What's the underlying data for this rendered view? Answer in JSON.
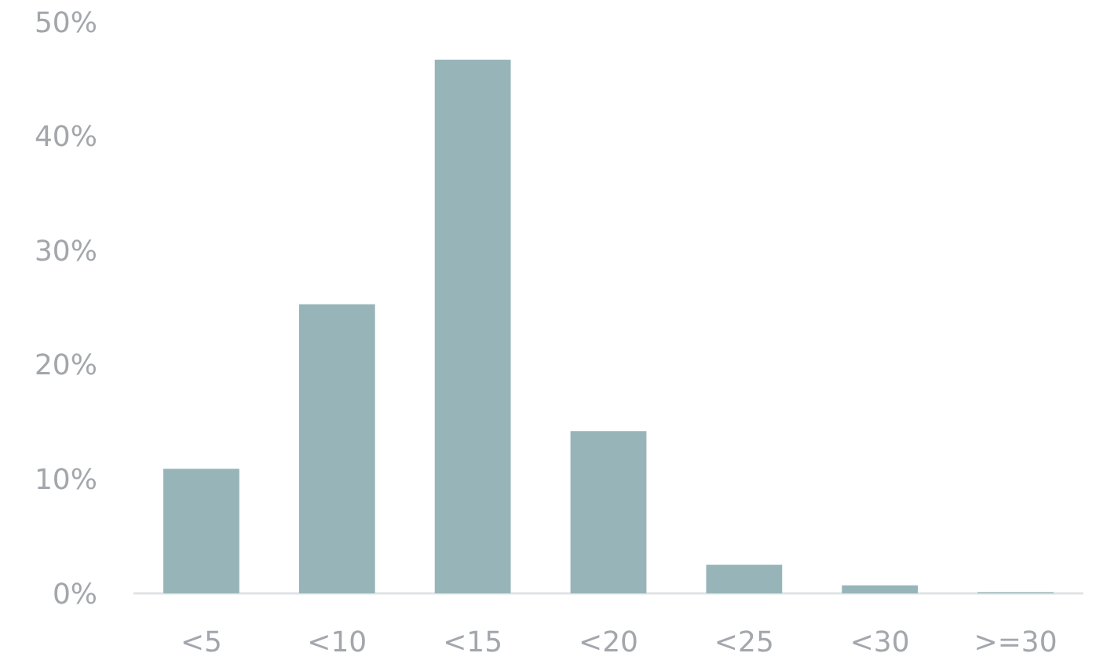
{
  "chart_data": {
    "type": "bar",
    "categories": [
      "<5",
      "<10",
      "<15",
      "<20",
      "<25",
      "<30",
      ">=30"
    ],
    "values": [
      10.9,
      25.3,
      46.7,
      14.2,
      2.5,
      0.7,
      0.1
    ],
    "color": "#97b5b9",
    "ylim": [
      0,
      50
    ],
    "yticks": [
      {
        "value": 0,
        "label": "0%"
      },
      {
        "value": 10,
        "label": "10%"
      },
      {
        "value": 20,
        "label": "20%"
      },
      {
        "value": 30,
        "label": "30%"
      },
      {
        "value": 40,
        "label": "40%"
      },
      {
        "value": 50,
        "label": "50%"
      }
    ],
    "grid": false
  }
}
